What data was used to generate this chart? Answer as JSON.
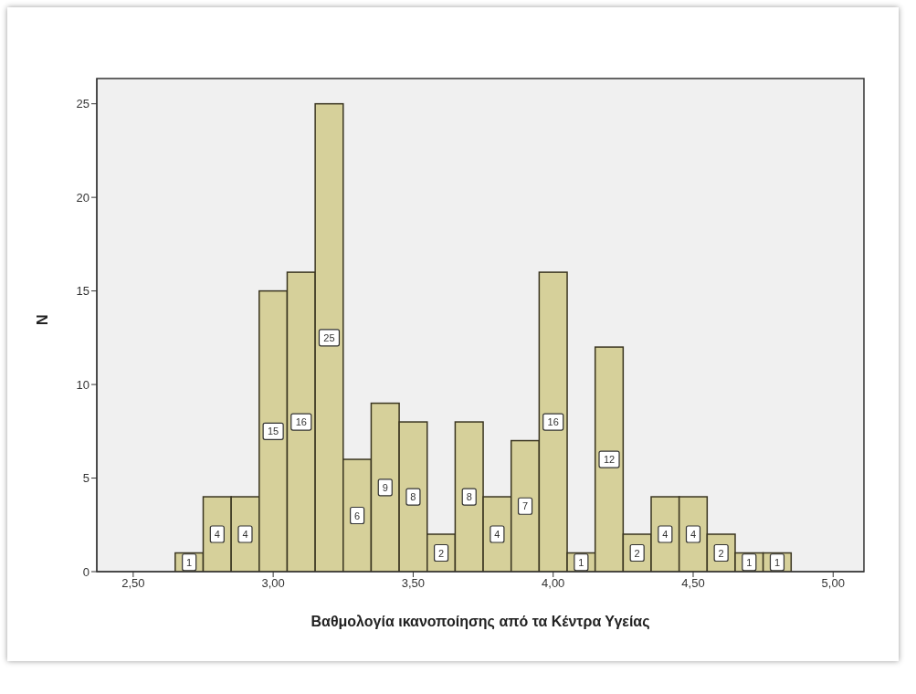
{
  "chart_data": {
    "type": "histogram",
    "xlabel": "Βαθμολογία ικανοποίησης από τα Κέντρα Υγείας",
    "ylabel": "N",
    "bins": [
      2.65,
      2.75,
      2.85,
      2.95,
      3.05,
      3.15,
      3.25,
      3.35,
      3.45,
      3.55,
      3.65,
      3.75,
      3.85,
      3.95,
      4.05,
      4.15,
      4.25,
      4.35,
      4.45,
      4.55,
      4.65,
      4.75,
      4.85
    ],
    "values": [
      1,
      4,
      4,
      15,
      16,
      25,
      6,
      9,
      8,
      2,
      8,
      4,
      7,
      16,
      1,
      12,
      2,
      4,
      4,
      2,
      1,
      1
    ],
    "color": "#d6d09a",
    "xlim": [
      2.37,
      5.11
    ],
    "xticks": [
      {
        "value": 2.5,
        "label": "2,50"
      },
      {
        "value": 3,
        "label": "3,00"
      },
      {
        "value": 3.5,
        "label": "3,50"
      },
      {
        "value": 4,
        "label": "4,00"
      },
      {
        "value": 4.5,
        "label": "4,50"
      },
      {
        "value": 5,
        "label": "5,00"
      }
    ],
    "ylim": [
      0,
      26.35
    ],
    "yticks": [
      0,
      5,
      10,
      15,
      20,
      25
    ],
    "data_labels": true,
    "grid": false,
    "legend": false
  }
}
